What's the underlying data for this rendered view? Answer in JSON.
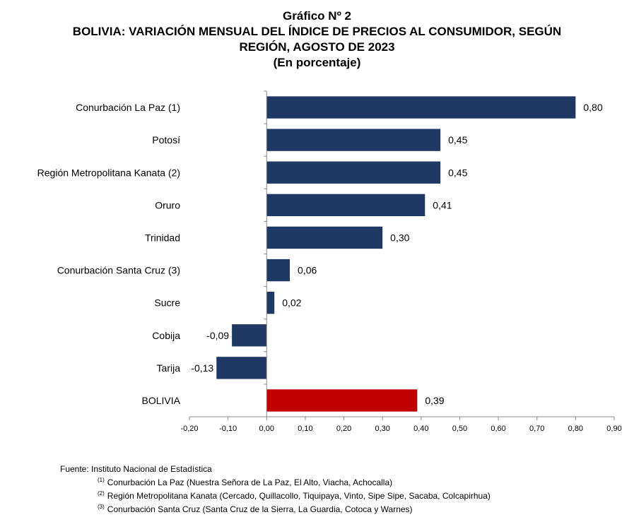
{
  "header": {
    "line1": "Gráfico Nº 2",
    "line2": "BOLIVIA: VARIACIÓN MENSUAL DEL ÍNDICE DE PRECIOS AL CONSUMIDOR, SEGÚN",
    "line3": "REGIÓN, AGOSTO DE 2023",
    "line4": "(En porcentaje)"
  },
  "footer": {
    "source": "Fuente: Instituto Nacional de Estadística",
    "notes": [
      {
        "mark": "(1)",
        "text": "Conurbación La Paz (Nuestra Señora de La Paz, El Alto, Viacha, Achocalla)"
      },
      {
        "mark": "(2)",
        "text": "Región Metropolitana Kanata (Cercado, Quillacollo, Tiquipaya, Vinto, Sipe Sipe, Sacaba, Colcapirhua)"
      },
      {
        "mark": "(3)",
        "text": "Conurbación Santa Cruz (Santa Cruz de la Sierra, La Guardia, Cotoca y Warnes)"
      }
    ]
  },
  "chart_data": {
    "type": "bar",
    "orientation": "horizontal",
    "categories": [
      "Conurbación La Paz (1)",
      "Potosí",
      "Región Metropolitana Kanata (2)",
      "Oruro",
      "Trinidad",
      "Conurbación Santa Cruz (3)",
      "Sucre",
      "Cobija",
      "Tarija",
      "BOLIVIA"
    ],
    "values": [
      0.8,
      0.45,
      0.45,
      0.41,
      0.3,
      0.06,
      0.02,
      -0.09,
      -0.13,
      0.39
    ],
    "value_labels": [
      "0,80",
      "0,45",
      "0,45",
      "0,41",
      "0,30",
      "0,06",
      "0,02",
      "-0,09",
      "-0,13",
      "0,39"
    ],
    "bar_colors": [
      "#1f3864",
      "#1f3864",
      "#1f3864",
      "#1f3864",
      "#1f3864",
      "#1f3864",
      "#1f3864",
      "#1f3864",
      "#1f3864",
      "#c00000"
    ],
    "xlim": [
      -0.2,
      0.9
    ],
    "ticks": [
      -0.2,
      -0.1,
      0.0,
      0.1,
      0.2,
      0.3,
      0.4,
      0.5,
      0.6,
      0.7,
      0.8,
      0.9
    ],
    "tick_labels": [
      "-0,20",
      "-0,10",
      "0,00",
      "0,10",
      "0,20",
      "0,30",
      "0,40",
      "0,50",
      "0,60",
      "0,70",
      "0,80",
      "0,90"
    ],
    "grid": false,
    "legend": "none"
  }
}
